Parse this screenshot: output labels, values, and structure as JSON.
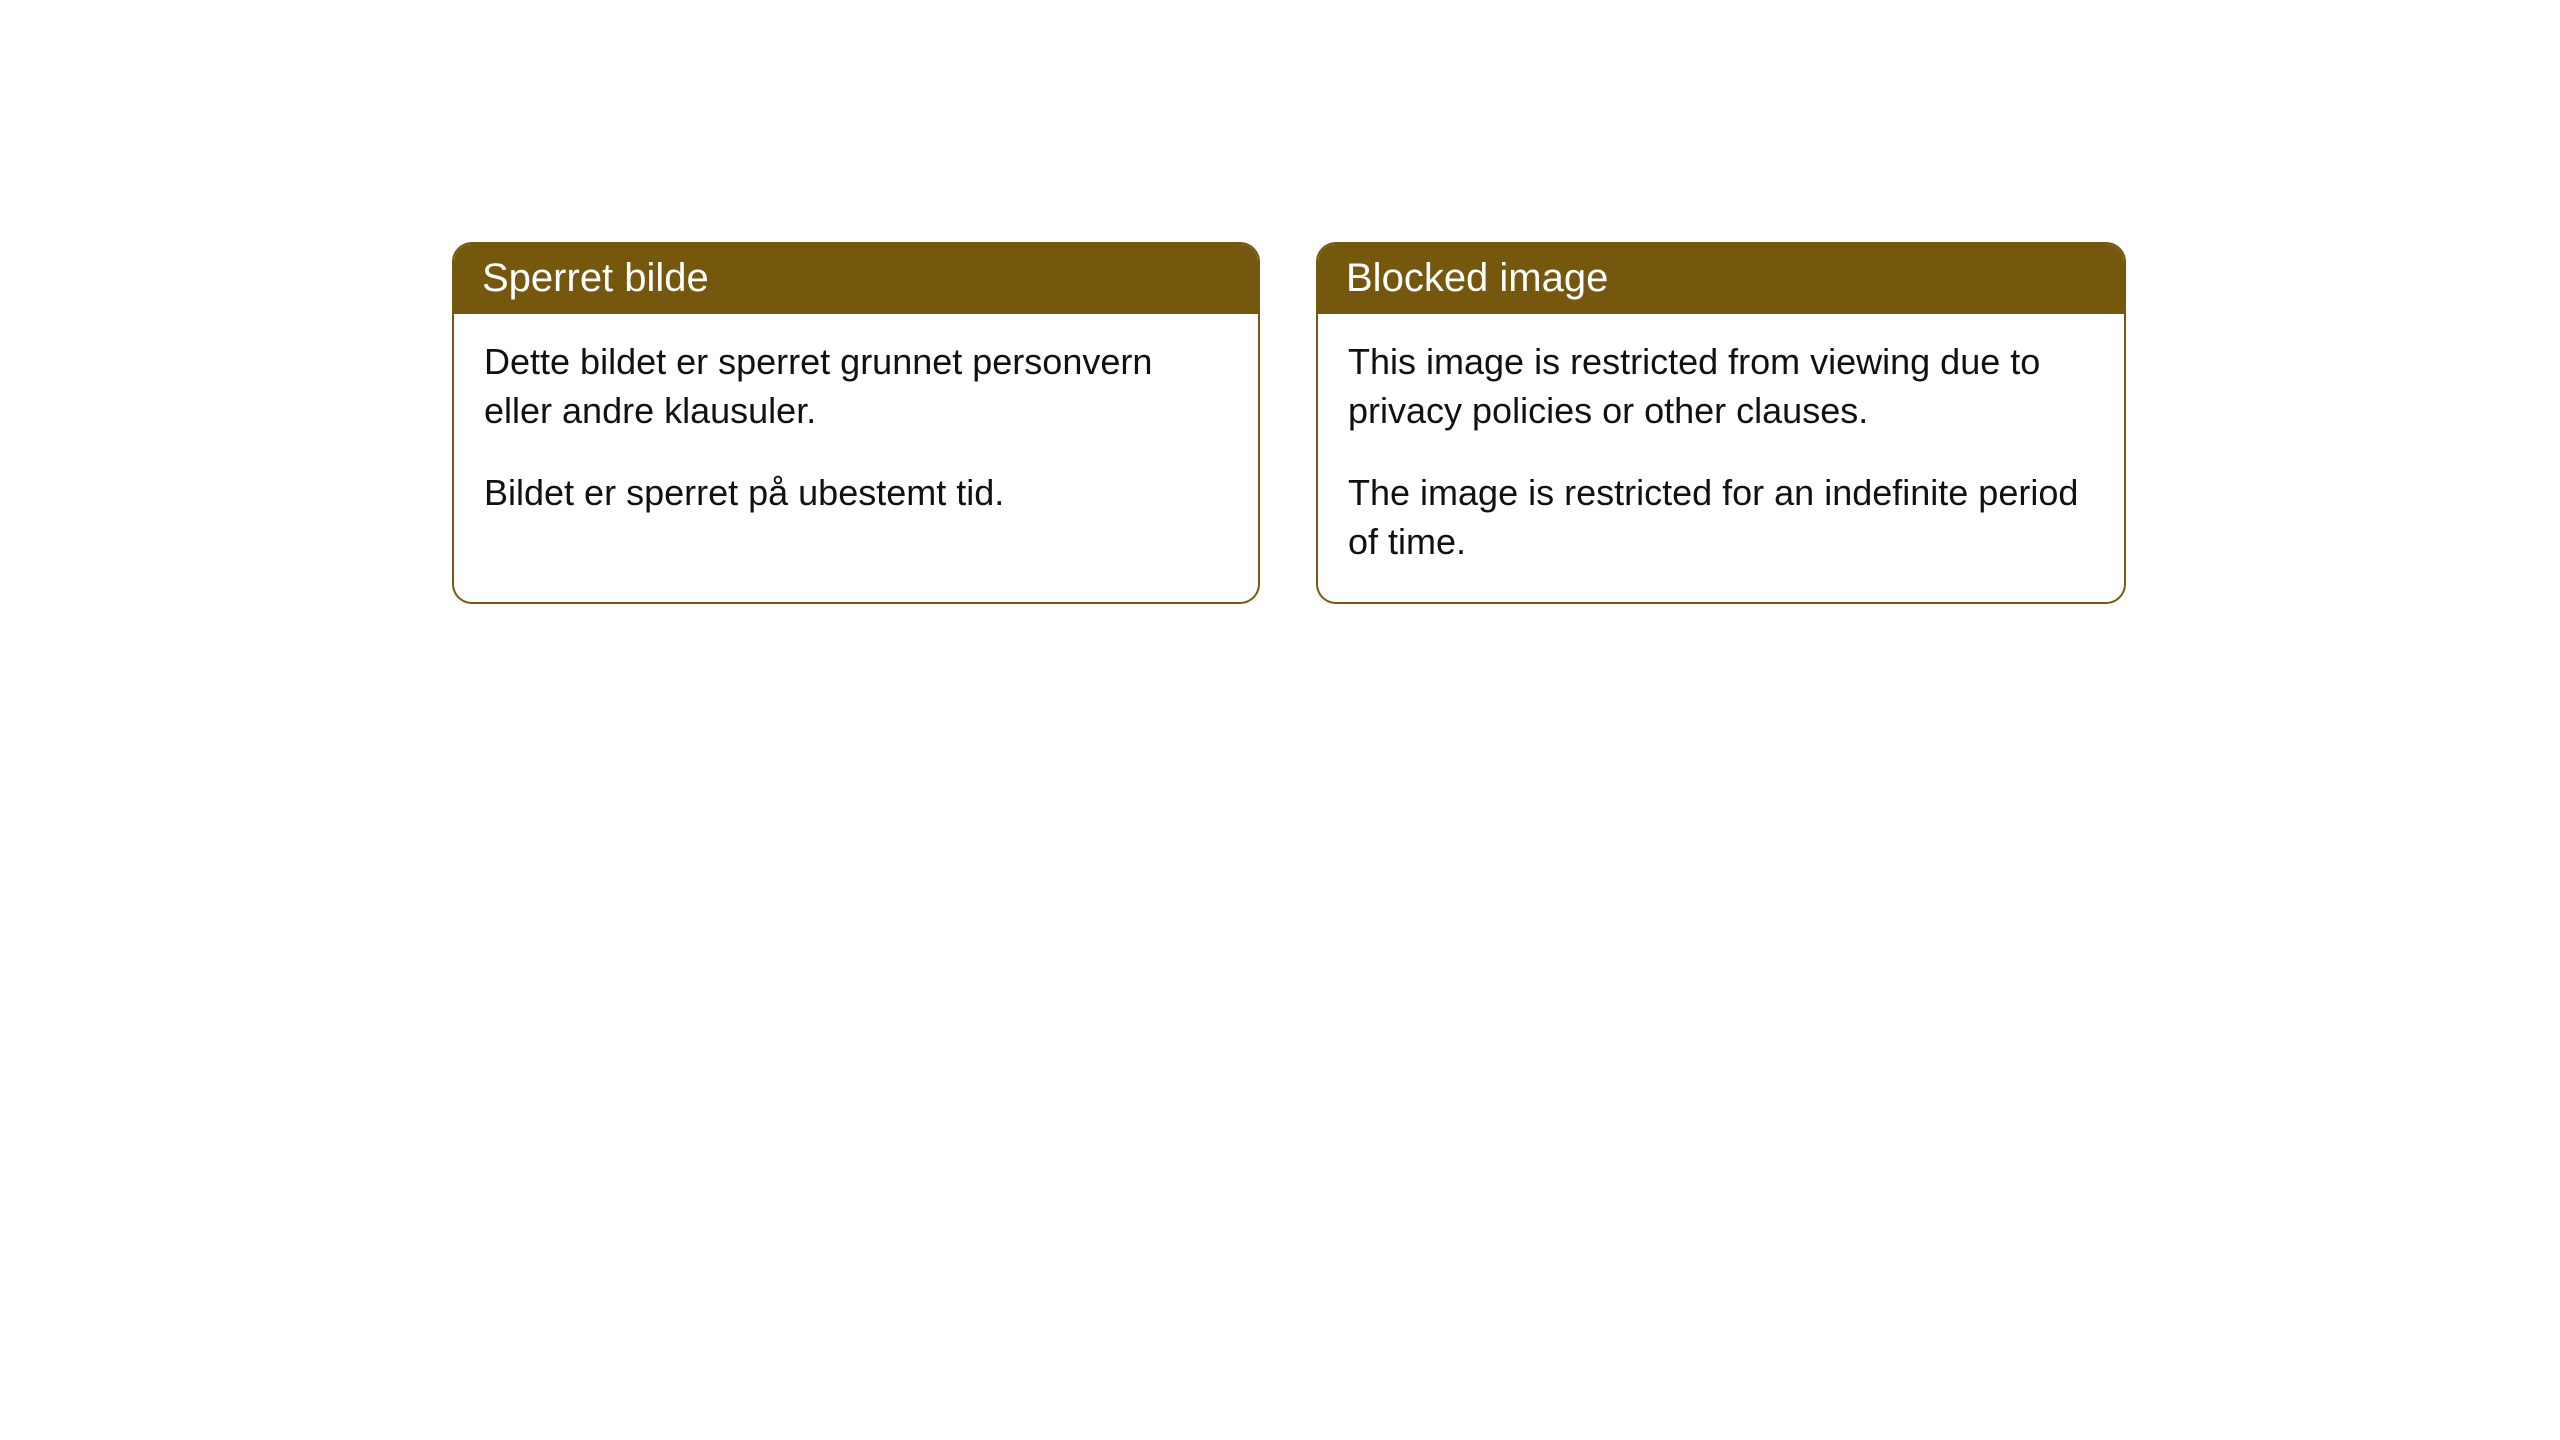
{
  "cards": [
    {
      "header": "Sperret bilde",
      "paragraph1": "Dette bildet er sperret grunnet personvern eller andre klausuler.",
      "paragraph2": "Bildet er sperret på ubestemt tid."
    },
    {
      "header": "Blocked image",
      "paragraph1": "This image is restricted from viewing due to privacy policies or other clauses.",
      "paragraph2": "The image is restricted for an indefinite period of time."
    }
  ],
  "styling": {
    "header_bg_color": "#76570e",
    "header_text_color": "#ffffff",
    "border_color": "#76570e",
    "body_bg_color": "#ffffff",
    "body_text_color": "#111111",
    "header_fontsize": 40,
    "body_fontsize": 36,
    "border_radius": 20
  }
}
